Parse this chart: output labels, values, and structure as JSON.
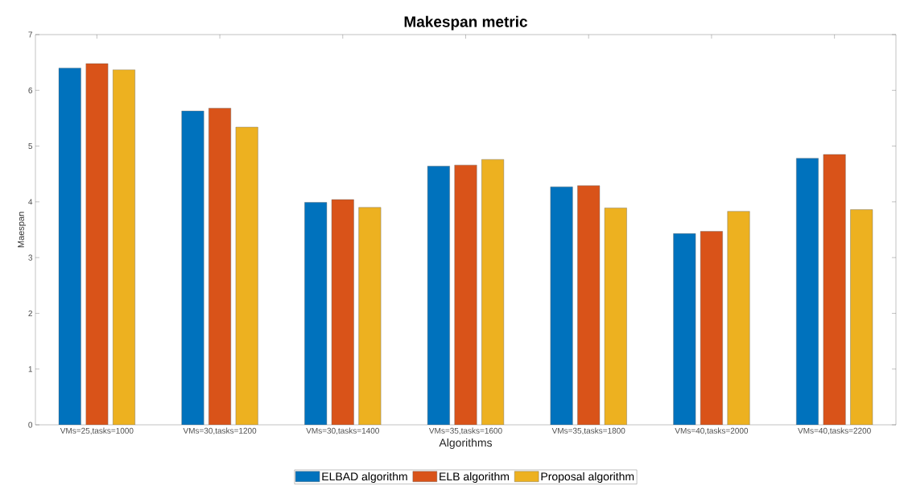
{
  "chart_data": {
    "type": "bar",
    "title": "Makespan metric",
    "xlabel": "Algorithms",
    "ylabel": "Maespan",
    "categories": [
      "VMs=25,tasks=1000",
      "VMs=30,tasks=1200",
      "VMs=30,tasks=1400",
      "VMs=35,tasks=1600",
      "VMs=35,tasks=1800",
      "VMs=40,tasks=2000",
      "VMs=40,tasks=2200"
    ],
    "series": [
      {
        "name": "ELBAD algorithm",
        "color": "#0072bd",
        "values": [
          6.4,
          5.63,
          3.99,
          4.64,
          4.27,
          3.43,
          4.78
        ]
      },
      {
        "name": "ELB algorithm",
        "color": "#d95319",
        "values": [
          6.48,
          5.68,
          4.04,
          4.66,
          4.29,
          3.47,
          4.85
        ]
      },
      {
        "name": "Proposal algorithm",
        "color": "#edb120",
        "values": [
          6.37,
          5.34,
          3.9,
          4.76,
          3.89,
          3.83,
          3.86
        ]
      }
    ],
    "ylim": [
      0,
      7
    ],
    "yticks": [
      0,
      1,
      2,
      3,
      4,
      5,
      6,
      7
    ],
    "legend": "bottom"
  }
}
